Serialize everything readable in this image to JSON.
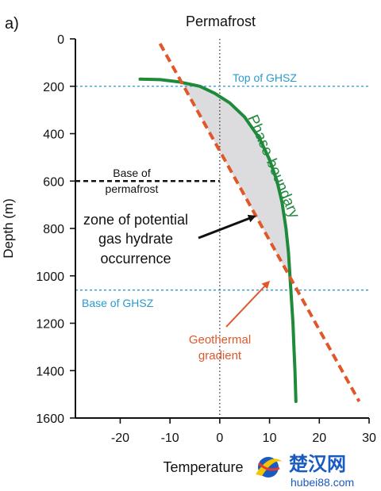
{
  "chart_data": {
    "type": "line",
    "panel_label": "a)",
    "title": "Permafrost",
    "xlabel": "Temperature",
    "ylabel": "Depth (m)",
    "xlim": [
      -29,
      30
    ],
    "ylim": [
      1600,
      0
    ],
    "y_inverted": true,
    "x_ticks": [
      -20,
      -10,
      0,
      10,
      20,
      30
    ],
    "y_ticks": [
      0,
      200,
      400,
      600,
      800,
      1000,
      1200,
      1400,
      1600
    ],
    "zero_line": {
      "x": 0,
      "style": "dotted"
    },
    "series": [
      {
        "name": "Phase-boundary",
        "color": "#1f8a3a",
        "style": "solid",
        "points": [
          [
            -16,
            170
          ],
          [
            -12,
            172
          ],
          [
            -8,
            182
          ],
          [
            -4,
            200
          ],
          [
            -1,
            230
          ],
          [
            2,
            270
          ],
          [
            5,
            330
          ],
          [
            8,
            420
          ],
          [
            10,
            510
          ],
          [
            11.5,
            600
          ],
          [
            12.5,
            690
          ],
          [
            13.3,
            800
          ],
          [
            13.8,
            900
          ],
          [
            14.1,
            1000
          ],
          [
            14.4,
            1100
          ],
          [
            14.7,
            1200
          ],
          [
            14.9,
            1300
          ],
          [
            15.1,
            1400
          ],
          [
            15.3,
            1530
          ]
        ]
      },
      {
        "name": "Geothermal gradient",
        "color": "#e0582a",
        "style": "dashed",
        "points": [
          [
            -12,
            20
          ],
          [
            28,
            1530
          ]
        ]
      }
    ],
    "reference_lines": [
      {
        "label": "Top of GHSZ",
        "y": 200,
        "color": "#2a9ad0",
        "style": "dotted"
      },
      {
        "label": "Base of GHSZ",
        "y": 1060,
        "color": "#2a9ad0",
        "style": "dotted"
      },
      {
        "label": "Base of permafrost",
        "y": 600,
        "x_range": [
          -29,
          0
        ],
        "color": "#111111",
        "style": "dashed"
      }
    ],
    "shaded_region": {
      "label": "zone of potential gas hydrate occurrence",
      "color": "#d8d8dc",
      "y_range": [
        182,
        1060
      ]
    },
    "annotations": {
      "top_ghsz": "Top of GHSZ",
      "base_ghsz": "Base of GHSZ",
      "base_permafrost_line1": "Base of",
      "base_permafrost_line2": "permafrost",
      "zone_line1": "zone of potential",
      "zone_line2": "gas hydrate",
      "zone_line3": "occurrence",
      "phase_boundary": "Phase-boundary",
      "geothermal_line1": "Geothermal",
      "geothermal_line2": "gradient"
    }
  },
  "watermark": {
    "name": "楚汉网",
    "url": "hubei88.com",
    "colors": {
      "primary": "#1a5bbf",
      "accent": "#e53935",
      "yellow": "#f5c400"
    }
  }
}
